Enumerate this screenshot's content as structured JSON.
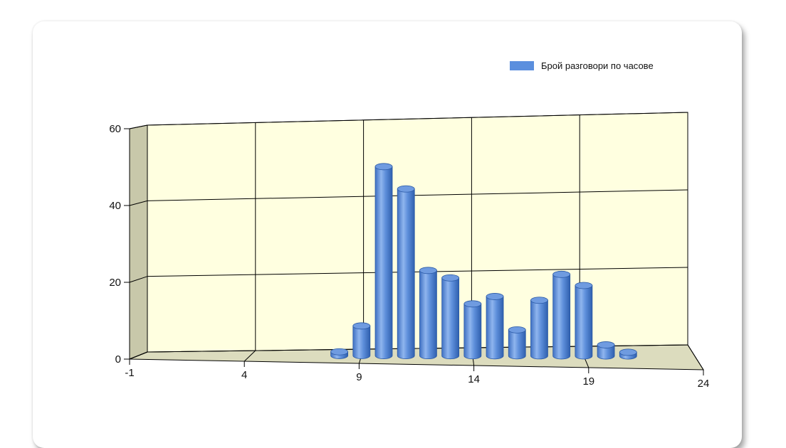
{
  "chart_data": {
    "type": "bar",
    "bar_style": "3d-cylinder",
    "legend": {
      "label": "Брой разговори по часове",
      "position": "top-right",
      "color": "#5b8fde"
    },
    "series": [
      {
        "name": "Брой разговори по часове",
        "x": [
          8,
          9,
          10,
          11,
          12,
          13,
          14,
          15,
          16,
          17,
          18,
          19,
          20,
          21
        ],
        "values": [
          1,
          8,
          51,
          45,
          23,
          21,
          14,
          16,
          7,
          15,
          22,
          19,
          3,
          1
        ]
      }
    ],
    "xlim": [
      -1,
      24
    ],
    "ylim": [
      0,
      60
    ],
    "x_ticks": [
      "-1",
      "4",
      "9",
      "14",
      "19",
      "24"
    ],
    "y_ticks": [
      "0",
      "20",
      "40",
      "60"
    ],
    "grid": true,
    "colors": {
      "bar": "#5b8fde",
      "wall": "#ffffe0",
      "side_wall": "#c8c8aa",
      "floor": "#dcdcbe"
    }
  }
}
